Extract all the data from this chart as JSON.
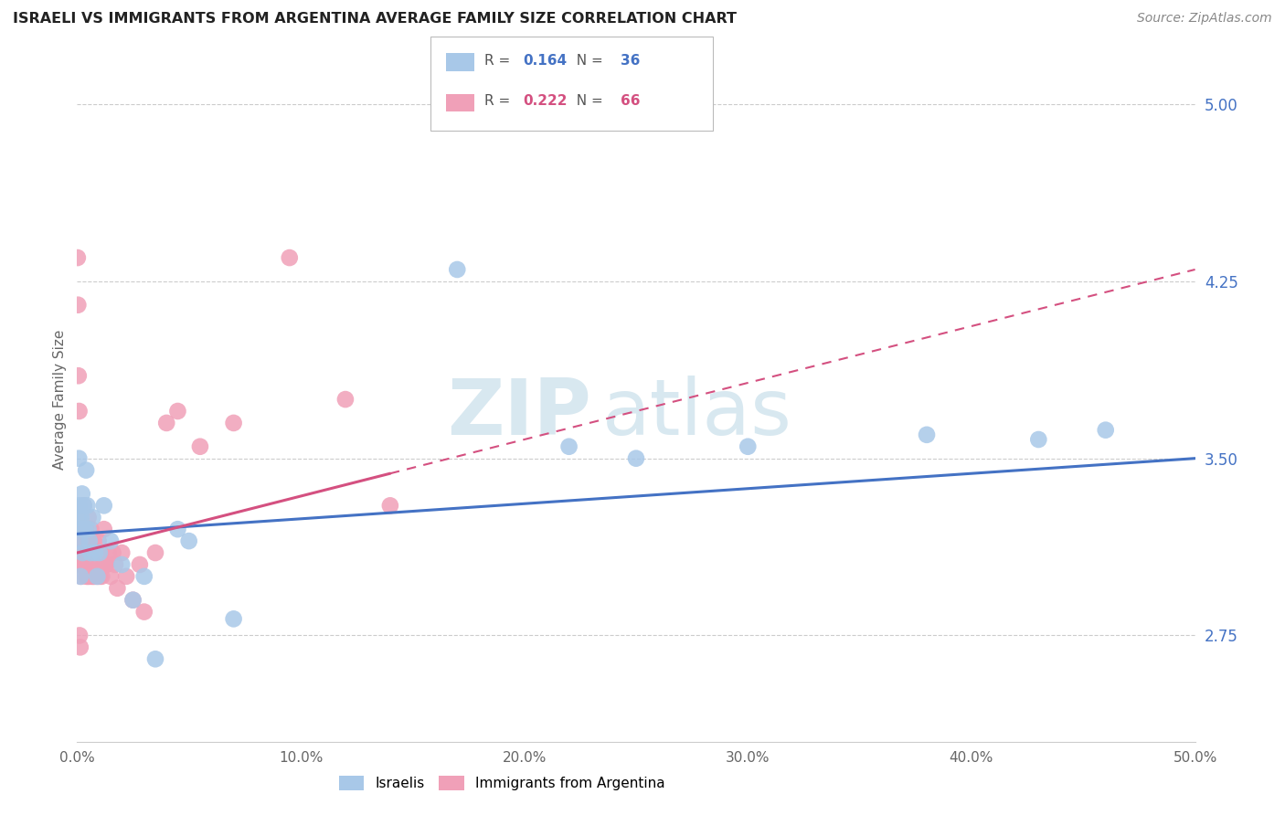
{
  "title": "ISRAELI VS IMMIGRANTS FROM ARGENTINA AVERAGE FAMILY SIZE CORRELATION CHART",
  "source": "Source: ZipAtlas.com",
  "ylabel": "Average Family Size",
  "xlim": [
    0.0,
    50.0
  ],
  "ylim": [
    2.3,
    5.2
  ],
  "right_yticks": [
    2.75,
    3.5,
    4.25,
    5.0
  ],
  "right_ytick_labels": [
    "2.75",
    "3.50",
    "4.25",
    "5.00"
  ],
  "legend_r_israeli": "0.164",
  "legend_n_israeli": "36",
  "legend_r_argentina": "0.222",
  "legend_n_argentina": "66",
  "israeli_color": "#a8c8e8",
  "argentina_color": "#f0a0b8",
  "israeli_line_color": "#4472c4",
  "argentina_line_color": "#d45080",
  "watermark_text": "ZIP",
  "watermark_text2": "atlas",
  "israeli_intercept": 3.18,
  "israeli_slope": 0.0064,
  "argentina_intercept": 3.1,
  "argentina_slope": 0.024,
  "argentina_data_xmax": 14.0,
  "israeli_x": [
    0.05,
    0.08,
    0.1,
    0.12,
    0.15,
    0.18,
    0.2,
    0.22,
    0.25,
    0.3,
    0.35,
    0.4,
    0.45,
    0.5,
    0.55,
    0.6,
    0.7,
    0.8,
    0.9,
    1.0,
    1.2,
    1.5,
    2.0,
    2.5,
    3.0,
    3.5,
    4.5,
    5.0,
    7.0,
    17.0,
    25.0,
    30.0,
    38.0,
    43.0,
    46.0,
    22.0
  ],
  "israeli_y": [
    3.25,
    3.5,
    3.3,
    3.15,
    3.0,
    3.25,
    3.2,
    3.35,
    3.1,
    3.3,
    3.2,
    3.45,
    3.3,
    3.2,
    3.15,
    3.1,
    3.25,
    3.1,
    3.0,
    3.1,
    3.3,
    3.15,
    3.05,
    2.9,
    3.0,
    2.65,
    3.2,
    3.15,
    2.82,
    4.3,
    3.5,
    3.55,
    3.6,
    3.58,
    3.62,
    3.55
  ],
  "argentina_x": [
    0.03,
    0.05,
    0.07,
    0.1,
    0.12,
    0.15,
    0.18,
    0.2,
    0.22,
    0.25,
    0.28,
    0.3,
    0.32,
    0.35,
    0.38,
    0.4,
    0.42,
    0.45,
    0.48,
    0.5,
    0.52,
    0.55,
    0.58,
    0.6,
    0.62,
    0.65,
    0.68,
    0.7,
    0.72,
    0.75,
    0.78,
    0.8,
    0.85,
    0.9,
    0.95,
    1.0,
    1.05,
    1.1,
    1.15,
    1.2,
    1.3,
    1.4,
    1.5,
    1.6,
    1.7,
    1.8,
    2.0,
    2.2,
    2.5,
    2.8,
    3.0,
    3.5,
    4.0,
    4.5,
    5.5,
    7.0,
    9.5,
    12.0,
    14.0,
    1.25,
    0.02,
    0.04,
    0.06,
    0.09,
    0.11,
    0.14
  ],
  "argentina_y": [
    3.15,
    3.2,
    3.05,
    3.1,
    3.25,
    3.1,
    3.0,
    3.05,
    3.2,
    3.1,
    3.05,
    3.3,
    3.1,
    3.15,
    3.05,
    3.2,
    3.0,
    3.1,
    3.0,
    3.25,
    3.1,
    3.0,
    3.15,
    3.1,
    3.2,
    3.0,
    3.05,
    3.1,
    3.0,
    3.15,
    3.0,
    3.05,
    3.1,
    3.0,
    3.15,
    3.0,
    3.1,
    3.0,
    3.05,
    3.2,
    3.05,
    3.1,
    3.0,
    3.1,
    3.05,
    2.95,
    3.1,
    3.0,
    2.9,
    3.05,
    2.85,
    3.1,
    3.65,
    3.7,
    3.55,
    3.65,
    4.35,
    3.75,
    3.3,
    3.05,
    4.35,
    4.15,
    3.85,
    3.7,
    2.75,
    2.7
  ]
}
